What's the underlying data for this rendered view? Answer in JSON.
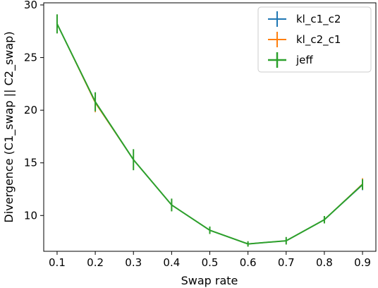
{
  "chart_data": {
    "type": "line",
    "title": "",
    "xlabel": "Swap rate",
    "ylabel": "Divergence (C1_swap || C2_swap)",
    "x": [
      0.1,
      0.2,
      0.3,
      0.4,
      0.5,
      0.6,
      0.7,
      0.8,
      0.9
    ],
    "xlim": [
      0.065,
      0.935
    ],
    "ylim": [
      6.6,
      30.2
    ],
    "xticks": [
      "0.1",
      "0.2",
      "0.3",
      "0.4",
      "0.5",
      "0.6",
      "0.7",
      "0.8",
      "0.9"
    ],
    "yticks": [
      "10",
      "15",
      "20",
      "25",
      "30"
    ],
    "legend_position": "top-right",
    "grid": false,
    "series": [
      {
        "name": "kl_c1_c2",
        "color": "#1f77b4",
        "values": [
          28.2,
          20.8,
          15.3,
          11.0,
          8.6,
          7.3,
          7.6,
          9.6,
          12.9
        ],
        "errors": [
          0.9,
          0.9,
          0.9,
          0.6,
          0.35,
          0.25,
          0.35,
          0.35,
          0.5
        ]
      },
      {
        "name": "kl_c2_c1",
        "color": "#ff7f0e",
        "values": [
          28.2,
          20.7,
          15.3,
          11.0,
          8.6,
          7.3,
          7.6,
          9.6,
          13.0
        ],
        "errors": [
          0.9,
          0.9,
          0.9,
          0.6,
          0.35,
          0.25,
          0.35,
          0.35,
          0.55
        ]
      },
      {
        "name": "jeff",
        "color": "#2ca02c",
        "values": [
          28.2,
          20.8,
          15.3,
          11.0,
          8.6,
          7.3,
          7.6,
          9.6,
          12.95
        ],
        "errors": [
          0.9,
          0.9,
          1.0,
          0.6,
          0.35,
          0.25,
          0.35,
          0.35,
          0.5
        ]
      }
    ]
  }
}
